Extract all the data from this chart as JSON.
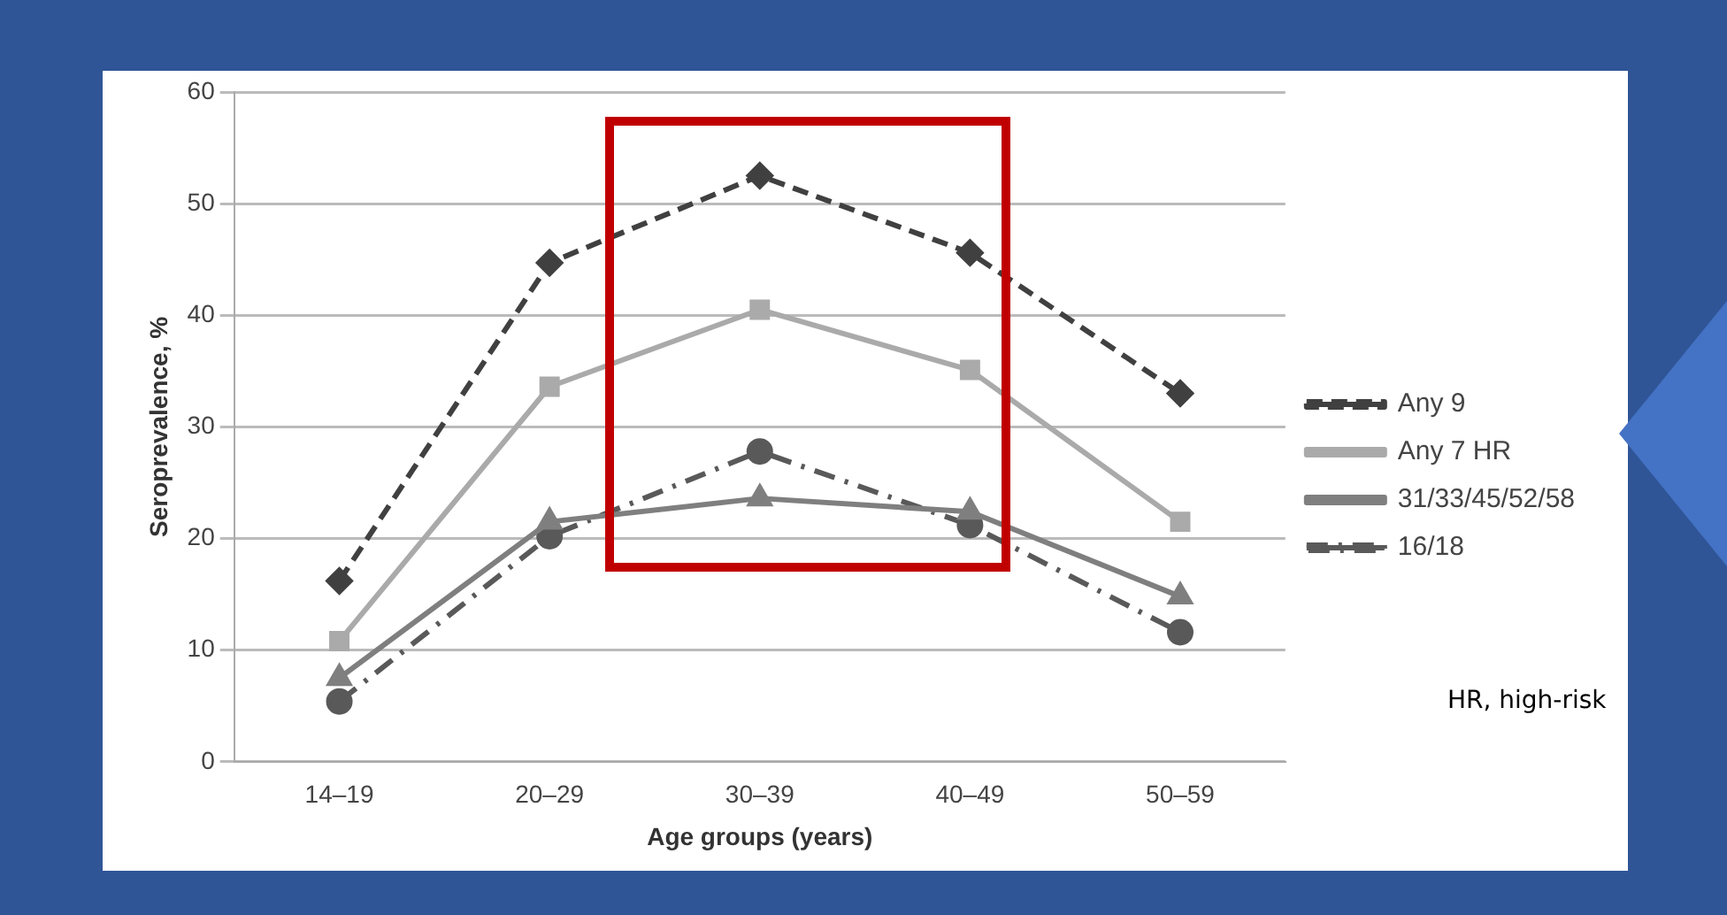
{
  "chart_data": {
    "type": "line",
    "xlabel": "Age groups (years)",
    "ylabel": "Seroprevalence, %",
    "categories": [
      "14–19",
      "20–29",
      "30–39",
      "40–49",
      "50–59"
    ],
    "series": [
      {
        "name": "Any 9",
        "color": "#404040",
        "values": [
          16.2,
          44.7,
          52.5,
          45.6,
          33.0
        ],
        "marker": "diamond",
        "line_style": "dashed"
      },
      {
        "name": "Any 7 HR",
        "color": "#aaaaaa",
        "values": [
          10.8,
          33.6,
          40.5,
          35.1,
          21.5
        ],
        "marker": "square",
        "line_style": "solid"
      },
      {
        "name": "31/33/45/52/58",
        "color": "#7f7f7f",
        "values": [
          7.5,
          21.5,
          23.6,
          22.4,
          14.8
        ],
        "marker": "triangle",
        "line_style": "solid"
      },
      {
        "name": "16/18",
        "color": "#595959",
        "values": [
          5.4,
          20.2,
          27.8,
          21.2,
          11.6
        ],
        "marker": "circle",
        "line_style": "dashdot"
      }
    ],
    "ylim": [
      0,
      60
    ],
    "yticks": [
      0,
      10,
      20,
      30,
      40,
      50,
      60
    ],
    "grid": "y",
    "legend": "right",
    "annotations": [
      "HR, high-risk"
    ]
  }
}
